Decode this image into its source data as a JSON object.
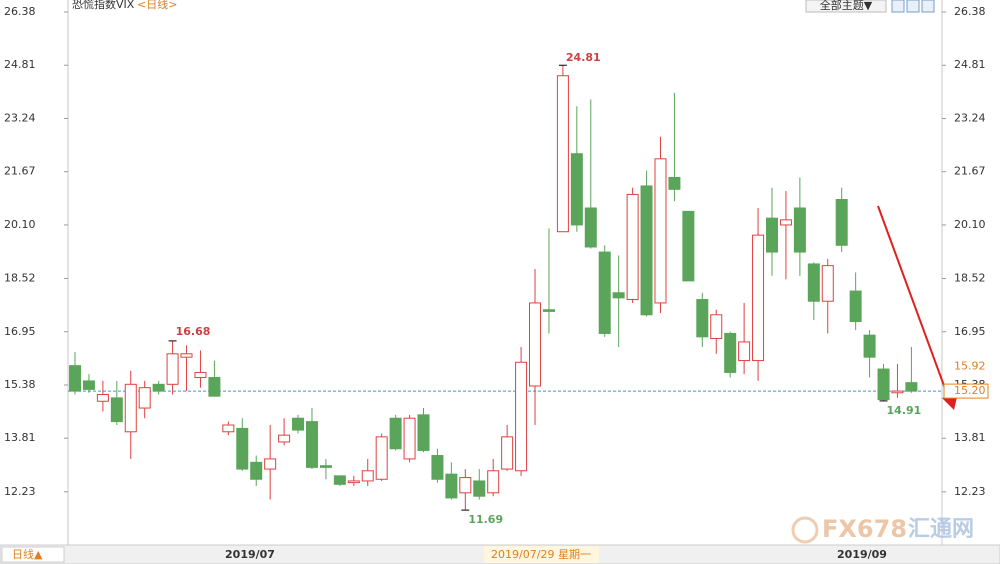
{
  "chart_data": {
    "type": "candlestick",
    "title": "恐慌指数VIX",
    "period_tag": "<日线>",
    "theme_button": "全部主题▼",
    "period_button": "日线▲",
    "x_labels": [
      "2019/07",
      "2019/09"
    ],
    "crosshair_label": "2019/07/29 星期一",
    "watermark": [
      "FX678",
      "汇通网"
    ],
    "up_color": "#e04040",
    "down_color": "#5aa55a",
    "open": [
      15.95,
      15.5,
      14.9,
      15.0,
      14.0,
      14.7,
      15.4,
      15.4,
      16.2,
      15.6,
      15.6,
      14.0,
      14.1,
      13.1,
      12.9,
      13.7,
      14.4,
      14.3,
      13.0,
      12.7,
      12.5,
      12.55,
      12.6,
      14.4,
      13.2,
      14.5,
      13.3,
      12.75,
      12.2,
      12.55,
      12.2,
      12.9,
      12.85,
      15.35,
      17.6,
      19.9,
      22.2,
      20.6,
      19.3,
      18.1,
      17.9,
      21.25,
      17.8,
      21.5,
      20.5,
      17.9,
      16.75,
      16.9,
      16.1,
      16.1,
      20.3,
      20.1,
      20.6,
      18.95,
      17.85,
      20.85,
      18.15,
      16.85,
      15.85,
      15.15,
      15.45
    ],
    "high": [
      16.35,
      15.7,
      15.5,
      15.5,
      15.8,
      15.5,
      15.5,
      16.68,
      16.55,
      16.4,
      16.1,
      14.3,
      14.4,
      13.3,
      14.2,
      14.4,
      14.5,
      14.7,
      13.2,
      12.7,
      12.7,
      13.2,
      13.95,
      14.5,
      14.5,
      14.7,
      13.5,
      13.1,
      12.9,
      12.9,
      13.2,
      14.2,
      16.5,
      18.8,
      20.0,
      24.81,
      23.6,
      23.8,
      19.5,
      19.2,
      21.2,
      21.7,
      22.7,
      24.0,
      20.5,
      18.1,
      17.6,
      16.95,
      17.8,
      20.6,
      21.2,
      21.1,
      21.5,
      19.0,
      19.1,
      21.2,
      18.7,
      17.0,
      16.0,
      16.0,
      16.5
    ],
    "low": [
      15.1,
      15.15,
      14.6,
      14.2,
      13.2,
      14.4,
      15.1,
      15.1,
      15.2,
      15.3,
      15.05,
      13.9,
      12.85,
      12.4,
      12.0,
      13.6,
      13.95,
      12.9,
      12.6,
      12.4,
      12.4,
      12.4,
      12.55,
      13.45,
      13.1,
      13.4,
      12.5,
      12.0,
      11.69,
      12.0,
      12.1,
      12.85,
      12.7,
      14.2,
      16.9,
      19.9,
      19.9,
      19.4,
      16.8,
      16.5,
      17.8,
      17.4,
      17.5,
      20.8,
      18.45,
      16.5,
      16.3,
      15.6,
      15.7,
      15.5,
      18.6,
      18.5,
      18.6,
      17.3,
      16.9,
      19.3,
      17.0,
      15.6,
      14.91,
      15.0,
      15.15
    ],
    "close": [
      15.2,
      15.25,
      15.1,
      14.3,
      15.4,
      15.3,
      15.2,
      16.3,
      16.3,
      15.75,
      15.05,
      14.2,
      12.9,
      12.6,
      13.2,
      13.9,
      14.05,
      12.95,
      12.95,
      12.45,
      12.55,
      12.85,
      13.85,
      13.5,
      14.4,
      13.45,
      12.6,
      12.05,
      12.65,
      12.1,
      12.85,
      13.85,
      16.05,
      17.8,
      17.55,
      24.5,
      20.1,
      19.45,
      16.9,
      17.95,
      21.0,
      17.45,
      22.05,
      21.15,
      18.45,
      16.8,
      17.45,
      15.75,
      16.65,
      19.8,
      19.3,
      20.25,
      19.3,
      17.85,
      18.9,
      19.5,
      17.25,
      16.2,
      14.95,
      15.2,
      15.2
    ],
    "ylim": [
      10.72,
      26.38
    ],
    "yticks": [
      {
        "value": 12.23,
        "label": "12.23"
      },
      {
        "value": 13.81,
        "label": "13.81"
      },
      {
        "value": 15.38,
        "label": "15.38"
      },
      {
        "value": 16.95,
        "label": "16.95"
      },
      {
        "value": 18.52,
        "label": "18.52"
      },
      {
        "value": 20.1,
        "label": "20.10"
      },
      {
        "value": 21.67,
        "label": "21.67"
      },
      {
        "value": 23.24,
        "label": "23.24"
      },
      {
        "value": 24.81,
        "label": "24.81"
      },
      {
        "value": 26.38,
        "label": "26.38"
      }
    ],
    "last_price": {
      "value": 15.2,
      "label": "15.20"
    },
    "price_marker": 15.92
  }
}
